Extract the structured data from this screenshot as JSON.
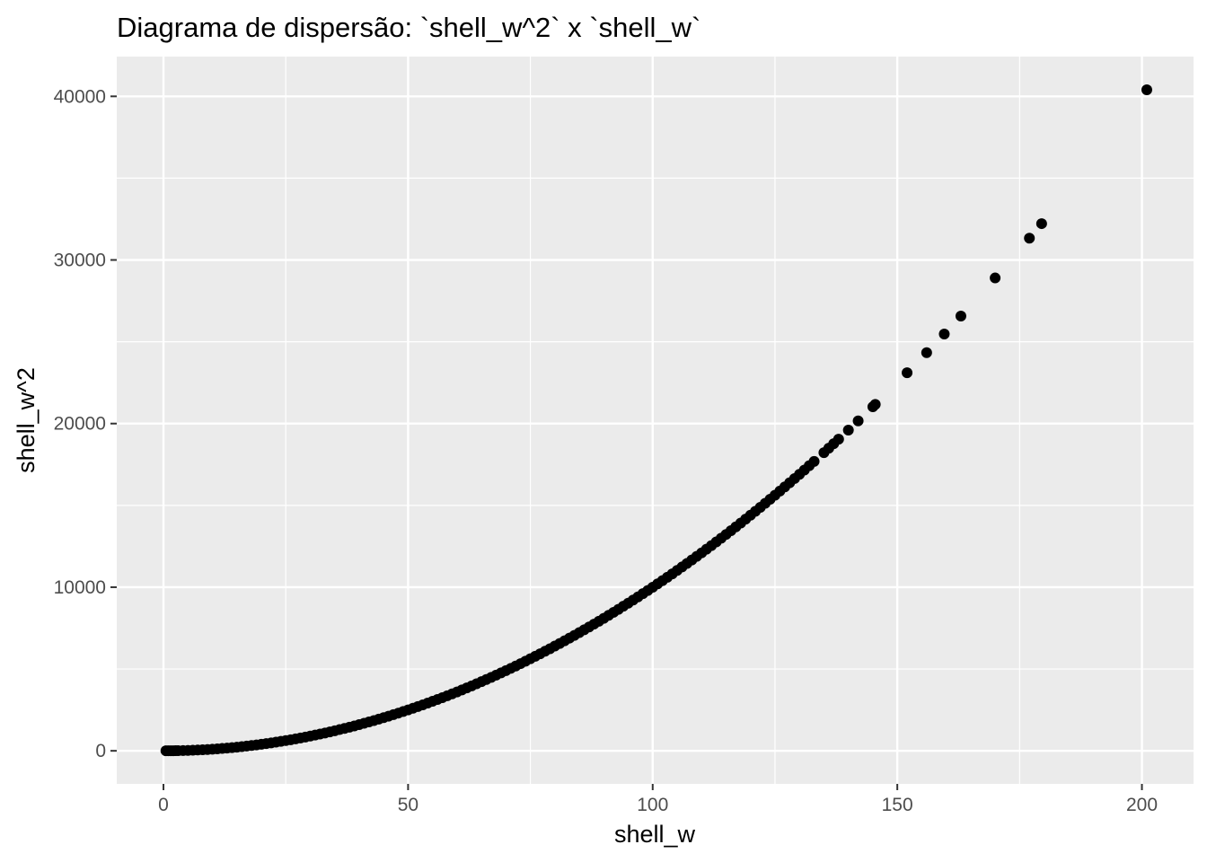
{
  "chart_data": {
    "type": "scatter",
    "title": "Diagrama de dispersão: `shell_w^2` x `shell_w`",
    "xlabel": "shell_w",
    "ylabel": "shell_w^2",
    "xlim": [
      -9.55,
      210.55
    ],
    "ylim": [
      -2021,
      42431
    ],
    "x_ticks": [
      0,
      50,
      100,
      150,
      200
    ],
    "x_tick_labels": [
      "0",
      "50",
      "100",
      "150",
      "200"
    ],
    "y_ticks": [
      0,
      10000,
      20000,
      30000,
      40000
    ],
    "y_tick_labels": [
      "0",
      "10000",
      "20000",
      "30000",
      "40000"
    ],
    "grid": true,
    "panel_background": "#ebebeb",
    "gridline_color": "#ffffff",
    "point_color": "#000000",
    "series": [
      {
        "name": "",
        "x": [
          0.5,
          1,
          1.5,
          2,
          2.5,
          3,
          4,
          5,
          6,
          7,
          8,
          9,
          10,
          11,
          12,
          13,
          14,
          15,
          16,
          17,
          18,
          19,
          20,
          21,
          22,
          23,
          24,
          25,
          26,
          27,
          28,
          29,
          30,
          31,
          32,
          33,
          34,
          35,
          36,
          37,
          38,
          39,
          40,
          41,
          42,
          43,
          44,
          45,
          46,
          47,
          48,
          49,
          50,
          51,
          52,
          53,
          54,
          55,
          56,
          57,
          58,
          59,
          60,
          61,
          62,
          63,
          64,
          65,
          66,
          67,
          68,
          69,
          70,
          71,
          72,
          73,
          74,
          75,
          76,
          77,
          78,
          79,
          80,
          81,
          82,
          83,
          84,
          85,
          86,
          87,
          88,
          89,
          90,
          91,
          92,
          93,
          94,
          95,
          96,
          97,
          98,
          99,
          100,
          101,
          102,
          103,
          104,
          105,
          106,
          107,
          108,
          109,
          110,
          111,
          112,
          113,
          114,
          115,
          116,
          117,
          118,
          119,
          120,
          121,
          122,
          123,
          124,
          125,
          126,
          127,
          128,
          129,
          130,
          131,
          132,
          133,
          135,
          136,
          137,
          138,
          140,
          142,
          145,
          145.5,
          152,
          156,
          159.6,
          163,
          170,
          177,
          179.5,
          201
        ],
        "y": [
          0.25,
          1,
          2.25,
          4,
          6.25,
          9,
          16,
          25,
          36,
          49,
          64,
          81,
          100,
          121,
          144,
          169,
          196,
          225,
          256,
          289,
          324,
          361,
          400,
          441,
          484,
          529,
          576,
          625,
          676,
          729,
          784,
          841,
          900,
          961,
          1024,
          1089,
          1156,
          1225,
          1296,
          1369,
          1444,
          1521,
          1600,
          1681,
          1764,
          1849,
          1936,
          2025,
          2116,
          2209,
          2304,
          2401,
          2500,
          2601,
          2704,
          2809,
          2916,
          3025,
          3136,
          3249,
          3364,
          3481,
          3600,
          3721,
          3844,
          3969,
          4096,
          4225,
          4356,
          4489,
          4624,
          4761,
          4900,
          5041,
          5184,
          5329,
          5476,
          5625,
          5776,
          5929,
          6084,
          6241,
          6400,
          6561,
          6724,
          6889,
          7056,
          7225,
          7396,
          7569,
          7744,
          7921,
          8100,
          8281,
          8464,
          8649,
          8836,
          9025,
          9216,
          9409,
          9604,
          9801,
          10000,
          10201,
          10404,
          10609,
          10816,
          11025,
          11236,
          11449,
          11664,
          11881,
          12100,
          12321,
          12544,
          12769,
          12996,
          13225,
          13456,
          13689,
          13924,
          14161,
          14400,
          14641,
          14884,
          15129,
          15376,
          15625,
          15876,
          16129,
          16384,
          16641,
          16900,
          17161,
          17424,
          17689,
          18225,
          18496,
          18769,
          19044,
          19600,
          20164,
          21025,
          21170,
          23104,
          24336,
          25472,
          26569,
          28900,
          31329,
          32220,
          40401
        ]
      }
    ]
  }
}
